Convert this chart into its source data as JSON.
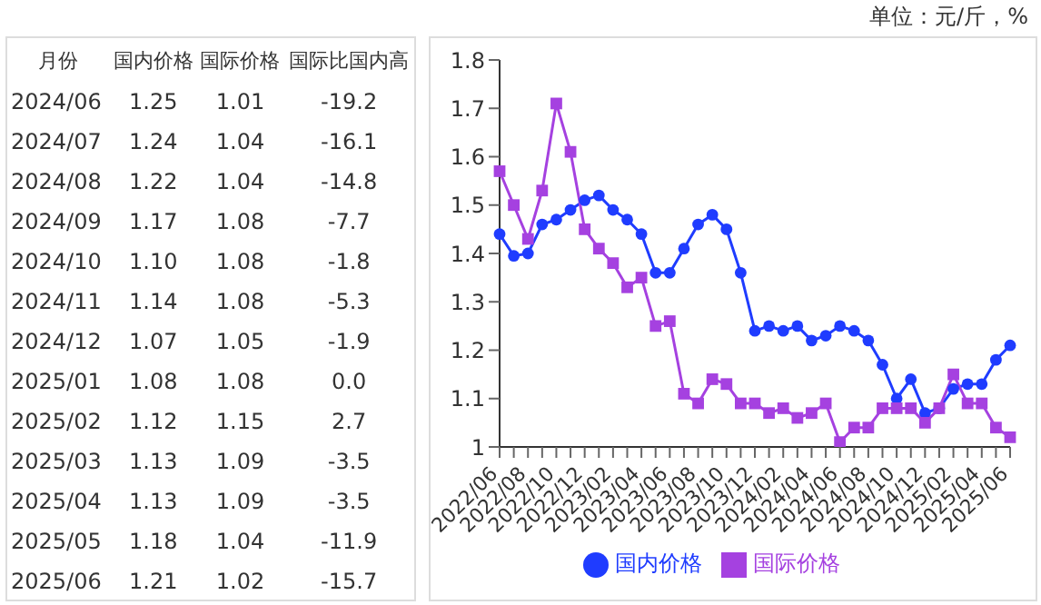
{
  "chart_data": [
    {
      "type": "other",
      "xlabel": "月份",
      "categories": [
        "2024/06",
        "2024/07",
        "2024/08",
        "2024/09",
        "2024/10",
        "2024/11",
        "2024/12",
        "2025/01",
        "2025/02",
        "2025/03",
        "2025/04",
        "2025/05",
        "2025/06"
      ],
      "series": [
        {
          "name": "国内价格",
          "values": [
            1.25,
            1.24,
            1.22,
            1.17,
            1.1,
            1.14,
            1.07,
            1.08,
            1.12,
            1.13,
            1.13,
            1.18,
            1.21
          ],
          "value_labels": [
            "1.25",
            "1.24",
            "1.22",
            "1.17",
            "1.10",
            "1.14",
            "1.07",
            "1.08",
            "1.12",
            "1.13",
            "1.13",
            "1.18",
            "1.21"
          ]
        },
        {
          "name": "国际价格",
          "values": [
            1.01,
            1.04,
            1.04,
            1.08,
            1.08,
            1.08,
            1.05,
            1.08,
            1.15,
            1.09,
            1.09,
            1.04,
            1.02
          ],
          "value_labels": [
            "1.01",
            "1.04",
            "1.04",
            "1.08",
            "1.08",
            "1.08",
            "1.05",
            "1.08",
            "1.15",
            "1.09",
            "1.09",
            "1.04",
            "1.02"
          ]
        },
        {
          "name": "国际比国内高",
          "values": [
            -19.2,
            -16.1,
            -14.8,
            -7.7,
            -1.8,
            -5.3,
            -1.9,
            0.0,
            2.7,
            -3.5,
            -3.5,
            -11.9,
            -15.7
          ],
          "value_labels": [
            "-19.2",
            "-16.1",
            "-14.8",
            "-7.7",
            "-1.8",
            "-5.3",
            "-1.9",
            "0.0",
            "2.7",
            "-3.5",
            "-3.5",
            "-11.9",
            "-15.7"
          ]
        }
      ]
    },
    {
      "type": "line",
      "annotations": [
        "单位：元/斤，%"
      ],
      "categories": [
        "2022/06",
        null,
        "2022/08",
        null,
        "2022/10",
        null,
        "2022/12",
        null,
        "2023/02",
        null,
        "2023/04",
        null,
        "2023/06",
        null,
        "2023/08",
        null,
        "2023/10",
        null,
        "2023/12",
        null,
        "2024/02",
        null,
        "2024/04",
        null,
        "2024/06",
        null,
        "2024/08",
        null,
        "2024/10",
        null,
        "2024/12",
        null,
        "2025/02",
        null,
        "2025/04",
        null,
        "2025/06"
      ],
      "series": [
        {
          "name": "国内价格",
          "color": "#1f3cff",
          "marker": "circle",
          "values": [
            1.44,
            1.395,
            1.4,
            1.46,
            1.47,
            1.49,
            1.51,
            1.52,
            1.49,
            1.47,
            1.44,
            1.36,
            1.36,
            1.41,
            1.46,
            1.48,
            1.45,
            1.36,
            1.24,
            1.25,
            1.24,
            1.25,
            1.22,
            1.23,
            1.25,
            1.24,
            1.22,
            1.17,
            1.1,
            1.14,
            1.07,
            1.08,
            1.12,
            1.13,
            1.13,
            1.18,
            1.21
          ]
        },
        {
          "name": "国际价格",
          "color": "#a541e0",
          "marker": "square",
          "values": [
            1.57,
            1.5,
            1.43,
            1.53,
            1.71,
            1.61,
            1.45,
            1.41,
            1.38,
            1.33,
            1.35,
            1.25,
            1.26,
            1.11,
            1.09,
            1.14,
            1.13,
            1.09,
            1.09,
            1.07,
            1.08,
            1.06,
            1.07,
            1.09,
            1.01,
            1.04,
            1.04,
            1.08,
            1.08,
            1.08,
            1.05,
            1.08,
            1.15,
            1.09,
            1.09,
            1.04,
            1.02
          ]
        }
      ],
      "ylim": [
        1,
        1.8
      ],
      "yticks": [
        1,
        1.1,
        1.2,
        1.3,
        1.4,
        1.5,
        1.6,
        1.7,
        1.8
      ],
      "grid": false,
      "legend": "bottom"
    }
  ]
}
